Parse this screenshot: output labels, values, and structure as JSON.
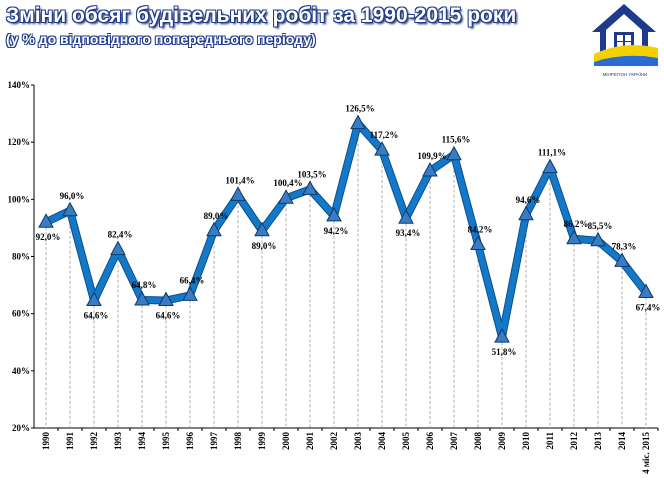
{
  "header": {
    "title": "Зміни обсяг будівельних робіт за 1990-2015 роки",
    "subtitle": "(у % до відповідного попереднього періоду)"
  },
  "logo": {
    "icon": "house-logo-icon",
    "caption": "МІНРЕГІОН УКРАЇНИ"
  },
  "colors": {
    "line": "#1478c8",
    "line_dark": "#0d4f8b",
    "marker": "#3a7cc4",
    "grid": "#9a9a9a"
  },
  "chart_data": {
    "type": "line",
    "title": "Зміни обсяг будівельних робіт за 1990-2015 роки",
    "subtitle": "(у % до відповідного попереднього періоду)",
    "xlabel": "",
    "ylabel": "",
    "ylim": [
      20,
      140
    ],
    "yticks": [
      20,
      40,
      60,
      80,
      100,
      120,
      140
    ],
    "ytick_labels": [
      "20%",
      "40%",
      "60%",
      "80%",
      "100%",
      "120%",
      "140%"
    ],
    "categories": [
      "1990",
      "1991",
      "1992",
      "1993",
      "1994",
      "1995",
      "1996",
      "1997",
      "1998",
      "1999",
      "2000",
      "2001",
      "2002",
      "2003",
      "2004",
      "2005",
      "2006",
      "2007",
      "2008",
      "2009",
      "2010",
      "2011",
      "2012",
      "2013",
      "2014",
      "4 міс. 2015"
    ],
    "series": [
      {
        "values": [
          92.0,
          96.0,
          64.6,
          82.4,
          64.8,
          64.6,
          66.4,
          89.0,
          101.4,
          89.0,
          100.4,
          103.5,
          94.2,
          126.5,
          117.2,
          93.4,
          109.9,
          115.6,
          84.2,
          51.8,
          94.6,
          111.1,
          86.2,
          85.5,
          78.3,
          67.4
        ],
        "labels": [
          "92,0%",
          "96,0%",
          "64,6%",
          "82,4%",
          "64,8%",
          "64,6%",
          "66,4%",
          "89,0%",
          "101,4%",
          "89,0%",
          "100,4%",
          "103,5%",
          "94,2%",
          "126,5%",
          "117,2%",
          "93,4%",
          "109,9%",
          "115,6%",
          "84,2%",
          "51,8%",
          "94,6%",
          "111,1%",
          "86,2%",
          "85,5%",
          "78,3%",
          "67,4%"
        ]
      }
    ],
    "grid": "vertical dashed",
    "legend": "none"
  }
}
